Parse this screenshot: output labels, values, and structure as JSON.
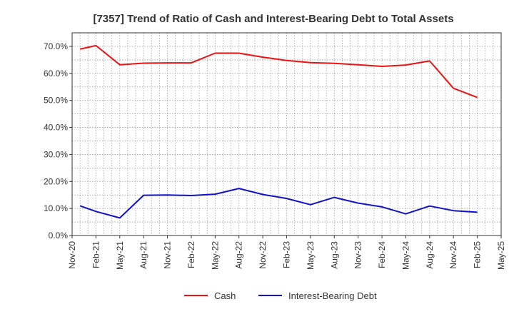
{
  "chart_data": {
    "type": "line",
    "title": "[7357]  Trend of Ratio of Cash and Interest-Bearing Debt to Total Assets",
    "xlabel": "",
    "ylabel": "",
    "ylim": [
      0,
      70
    ],
    "y_ticks": [
      "0.0%",
      "10.0%",
      "20.0%",
      "30.0%",
      "40.0%",
      "50.0%",
      "60.0%",
      "70.0%"
    ],
    "x_ticks": [
      "Nov-20",
      "Feb-21",
      "May-21",
      "Aug-21",
      "Nov-21",
      "Feb-22",
      "May-22",
      "Aug-22",
      "Nov-22",
      "Feb-23",
      "May-23",
      "Aug-23",
      "Nov-23",
      "Feb-24",
      "May-24",
      "Aug-24",
      "Nov-24",
      "Feb-25",
      "May-25"
    ],
    "x": [
      "Dec-20",
      "Feb-21",
      "May-21",
      "Aug-21",
      "Nov-21",
      "Feb-22",
      "May-22",
      "Aug-22",
      "Nov-22",
      "Feb-23",
      "May-23",
      "Aug-23",
      "Nov-23",
      "Feb-24",
      "May-24",
      "Aug-24",
      "Nov-24",
      "Feb-25"
    ],
    "series": [
      {
        "name": "Cash",
        "color": "#ee1111",
        "values": [
          69.0,
          70.3,
          63.2,
          63.8,
          63.9,
          63.9,
          67.5,
          67.5,
          66.0,
          64.8,
          64.0,
          63.7,
          63.2,
          62.6,
          63.1,
          64.6,
          54.5,
          51.1
        ]
      },
      {
        "name": "Interest-Bearing Debt",
        "color": "#1111cc",
        "values": [
          11.0,
          8.9,
          6.5,
          14.9,
          15.0,
          14.8,
          15.3,
          17.4,
          15.2,
          13.7,
          11.4,
          14.1,
          12.0,
          10.6,
          8.0,
          10.9,
          9.2,
          8.6
        ]
      }
    ],
    "grid": true,
    "legend_position": "bottom"
  }
}
